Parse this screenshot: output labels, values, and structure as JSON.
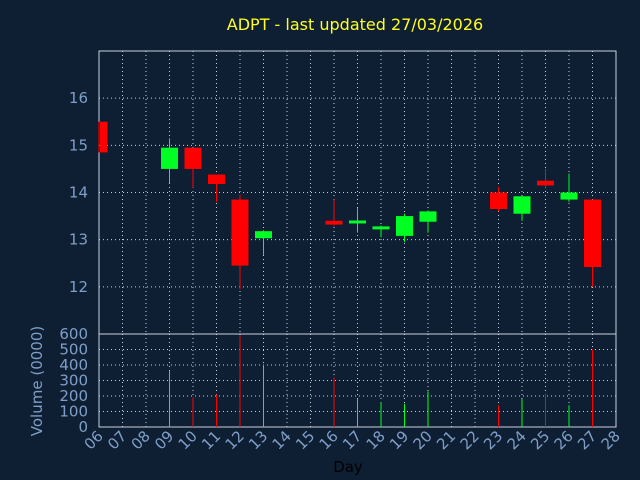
{
  "chart_data": {
    "type": "candlestick",
    "title": "ADPT - last updated 27/03/2026",
    "xlabel": "Day",
    "price_axis": {
      "ylim": [
        11,
        17
      ],
      "ticks": [
        12,
        13,
        14,
        15,
        16
      ]
    },
    "volume_axis": {
      "ylabel": "Volume (0000)",
      "ylim": [
        0,
        600
      ],
      "ticks": [
        0,
        100,
        200,
        300,
        400,
        500,
        600
      ]
    },
    "x_ticks": [
      "06",
      "07",
      "08",
      "09",
      "10",
      "11",
      "12",
      "13",
      "14",
      "15",
      "16",
      "17",
      "18",
      "19",
      "20",
      "21",
      "22",
      "23",
      "24",
      "25",
      "26",
      "27",
      "28"
    ],
    "grid": true,
    "colors": {
      "up": "#00ff22",
      "down": "#ff0000",
      "background": "#0f1f33",
      "title": "#ffff22",
      "axis_text": "#7f9fc8"
    },
    "candles": [
      {
        "day": 6,
        "open": 15.5,
        "high": 15.5,
        "low": 14.85,
        "close": 14.85,
        "volume": 0
      },
      {
        "day": 9,
        "open": 14.5,
        "high": 15.15,
        "low": 14.2,
        "close": 14.95,
        "volume": 360
      },
      {
        "day": 10,
        "open": 14.95,
        "high": 14.95,
        "low": 14.1,
        "close": 14.5,
        "volume": 190
      },
      {
        "day": 11,
        "open": 14.38,
        "high": 14.38,
        "low": 13.8,
        "close": 14.18,
        "volume": 210
      },
      {
        "day": 12,
        "open": 13.85,
        "high": 13.95,
        "low": 11.95,
        "close": 12.45,
        "volume": 590
      },
      {
        "day": 13,
        "open": 13.03,
        "high": 13.2,
        "low": 12.68,
        "close": 13.18,
        "volume": 390
      },
      {
        "day": 16,
        "open": 13.4,
        "high": 13.85,
        "low": 13.3,
        "close": 13.32,
        "volume": 320
      },
      {
        "day": 17,
        "open": 13.35,
        "high": 13.67,
        "low": 13.15,
        "close": 13.4,
        "volume": 180
      },
      {
        "day": 18,
        "open": 13.22,
        "high": 13.3,
        "low": 13.05,
        "close": 13.28,
        "volume": 160
      },
      {
        "day": 19,
        "open": 13.08,
        "high": 13.55,
        "low": 12.95,
        "close": 13.5,
        "volume": 150
      },
      {
        "day": 20,
        "open": 13.38,
        "high": 13.62,
        "low": 13.15,
        "close": 13.6,
        "volume": 230
      },
      {
        "day": 23,
        "open": 14.0,
        "high": 14.12,
        "low": 13.6,
        "close": 13.65,
        "volume": 140
      },
      {
        "day": 24,
        "open": 13.55,
        "high": 13.92,
        "low": 13.4,
        "close": 13.92,
        "volume": 180
      },
      {
        "day": 25,
        "open": 14.25,
        "high": 14.5,
        "low": 14.1,
        "close": 14.15,
        "volume": 215
      },
      {
        "day": 26,
        "open": 13.85,
        "high": 14.4,
        "low": 13.8,
        "close": 14.0,
        "volume": 140
      },
      {
        "day": 27,
        "open": 13.85,
        "high": 13.85,
        "low": 12.0,
        "close": 12.42,
        "volume": 500
      }
    ]
  }
}
